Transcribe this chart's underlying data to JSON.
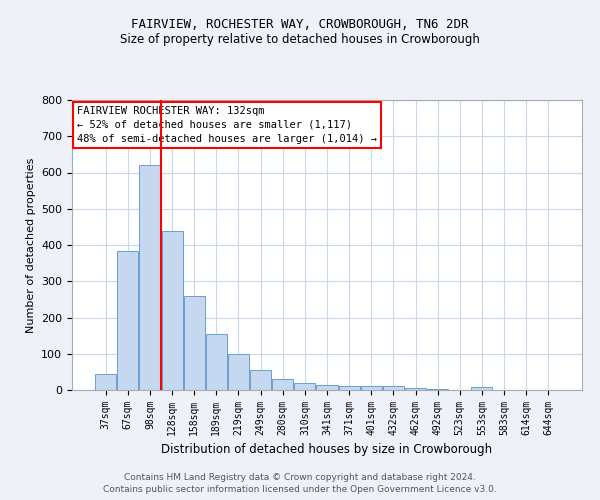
{
  "title": "FAIRVIEW, ROCHESTER WAY, CROWBOROUGH, TN6 2DR",
  "subtitle": "Size of property relative to detached houses in Crowborough",
  "xlabel": "Distribution of detached houses by size in Crowborough",
  "ylabel": "Number of detached properties",
  "footnote1": "Contains HM Land Registry data © Crown copyright and database right 2024.",
  "footnote2": "Contains public sector information licensed under the Open Government Licence v3.0.",
  "categories": [
    "37sqm",
    "67sqm",
    "98sqm",
    "128sqm",
    "158sqm",
    "189sqm",
    "219sqm",
    "249sqm",
    "280sqm",
    "310sqm",
    "341sqm",
    "371sqm",
    "401sqm",
    "432sqm",
    "462sqm",
    "492sqm",
    "523sqm",
    "553sqm",
    "583sqm",
    "614sqm",
    "644sqm"
  ],
  "values": [
    45,
    383,
    622,
    440,
    260,
    155,
    100,
    55,
    30,
    20,
    14,
    10,
    10,
    10,
    6,
    3,
    0,
    7,
    0,
    0,
    0
  ],
  "bar_color": "#c5d8f0",
  "bar_edgecolor": "#6a9fd0",
  "vline_x_index": 3,
  "vline_color": "red",
  "annotation_text": "FAIRVIEW ROCHESTER WAY: 132sqm\n← 52% of detached houses are smaller (1,117)\n48% of semi-detached houses are larger (1,014) →",
  "annotation_box_edgecolor": "red",
  "ylim": [
    0,
    800
  ],
  "yticks": [
    0,
    100,
    200,
    300,
    400,
    500,
    600,
    700,
    800
  ],
  "background_color": "#eef2f8",
  "plot_bg_color": "#ffffff",
  "grid_color": "#c8d8ec"
}
